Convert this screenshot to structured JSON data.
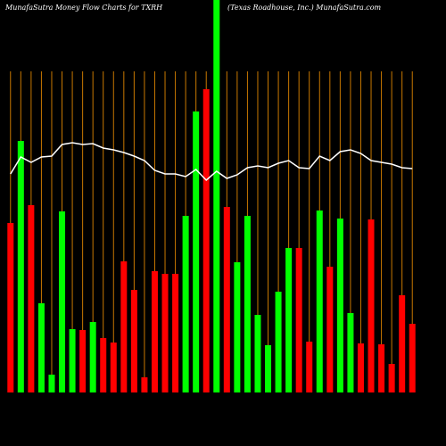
{
  "chart_data": {
    "type": "bar",
    "title": "MunafaSutra  Money Flow  Charts for TXRH",
    "subtitle": "(Texas Roadhouse, Inc.) MunafaSutra.com",
    "categories": [
      null,
      null,
      null,
      null,
      null,
      null,
      null,
      null,
      null,
      null,
      null,
      null,
      null,
      null,
      null,
      null,
      null,
      null,
      null,
      null,
      null,
      null,
      null,
      null,
      null,
      null,
      null,
      null,
      null,
      null,
      null,
      null,
      null,
      null,
      null,
      null,
      null,
      null,
      null,
      null
    ],
    "ylim": [
      0,
      440
    ],
    "series": [
      {
        "type": "bar",
        "values": [
          190,
          282,
          210,
          100,
          20,
          203,
          71,
          70,
          79,
          61,
          56,
          147,
          115,
          17,
          136,
          133,
          133,
          198,
          315,
          340,
          460,
          208,
          146,
          198,
          87,
          53,
          113,
          162,
          162,
          57,
          204,
          141,
          195,
          89,
          55,
          194,
          54,
          32,
          109,
          77
        ],
        "colors": [
          "#ff0000",
          "#00ff00",
          "#ff0000",
          "#00ff00",
          "#00ff00",
          "#00ff00",
          "#00ff00",
          "#ff0000",
          "#00ff00",
          "#ff0000",
          "#ff0000",
          "#ff0000",
          "#ff0000",
          "#ff0000",
          "#ff0000",
          "#ff0000",
          "#ff0000",
          "#00ff00",
          "#00ff00",
          "#ff0000",
          "#00ff00",
          "#ff0000",
          "#00ff00",
          "#00ff00",
          "#00ff00",
          "#00ff00",
          "#00ff00",
          "#00ff00",
          "#ff0000",
          "#ff0000",
          "#00ff00",
          "#ff0000",
          "#00ff00",
          "#00ff00",
          "#ff0000",
          "#ff0000",
          "#ff0000",
          "#ff0000",
          "#ff0000",
          "#ff0000"
        ]
      },
      {
        "type": "line",
        "color": "#ffffff",
        "values": [
          245,
          264,
          258,
          264,
          265,
          278,
          280,
          278,
          279,
          274,
          272,
          269,
          265,
          260,
          249,
          245,
          245,
          242,
          250,
          238,
          248,
          240,
          244,
          252,
          254,
          252,
          257,
          260,
          252,
          251,
          265,
          260,
          270,
          272,
          268,
          260,
          258,
          256,
          252,
          251
        ]
      }
    ],
    "gridline_color": "#c87800"
  }
}
